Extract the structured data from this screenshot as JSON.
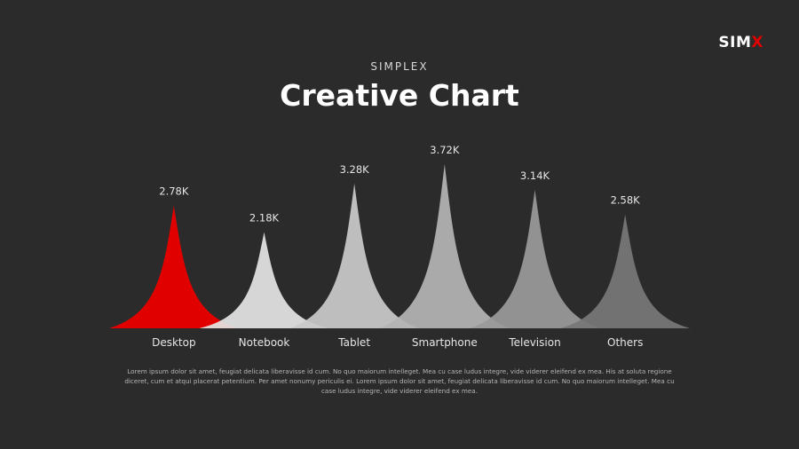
{
  "brand": {
    "logo_main": "SIM",
    "logo_accent": "X",
    "accent_color": "#e00000"
  },
  "header": {
    "subtitle": "SIMPLEX",
    "title": "Creative Chart"
  },
  "chart_data": {
    "type": "area",
    "title": "Creative Chart",
    "categories": [
      "Desktop",
      "Notebook",
      "Tablet",
      "Smartphone",
      "Television",
      "Others"
    ],
    "values": [
      2.78,
      2.18,
      3.28,
      3.72,
      3.14,
      2.58
    ],
    "value_labels": [
      "2.78K",
      "2.18K",
      "3.28K",
      "3.72K",
      "3.14K",
      "2.58K"
    ],
    "unit": "K",
    "colors": [
      "#e00000",
      "#e3e3e3",
      "#c9c9c9",
      "#b4b4b4",
      "#9a9a9a",
      "#777777"
    ],
    "ylim": [
      0,
      3.8
    ],
    "grid": false,
    "legend": "none"
  },
  "body": {
    "text": "Lorem ipsum dolor sit amet, feugiat delicata liberavisse id cum. No quo maiorum intelleget. Mea cu case ludus integre, vide viderer eleifend ex mea. His at soluta regione diceret, cum et atqui placerat petentium. Per amet nonumy periculis ei. Lorem ipsum dolor sit amet, feugiat delicata liberavisse id cum. No quo maiorum intelleget. Mea cu case ludus integre, vide viderer eleifend ex mea."
  }
}
